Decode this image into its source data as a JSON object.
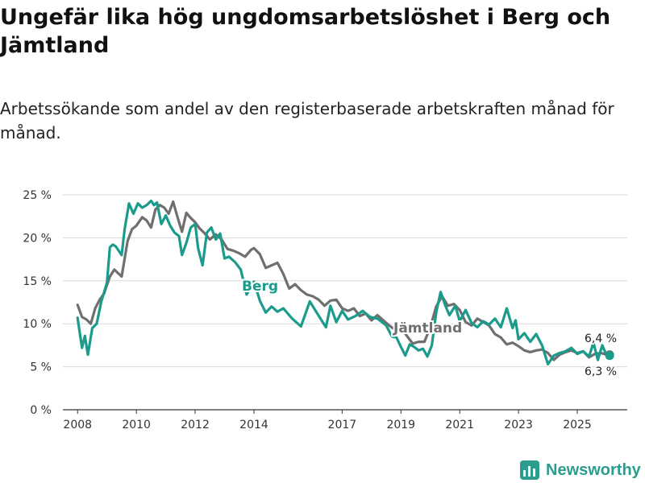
{
  "title": "Ungefär lika hög ungdomsarbetslöshet i Berg och Jämtland",
  "subtitle": "Arbetssökande som andel av den registerbaserade arbetskraften månad för månad.",
  "brand": "Newsworthy",
  "colors": {
    "berg": "#1a9b8c",
    "jamtland": "#6f6f6f",
    "grid": "#d8d8d8",
    "axis": "#333333"
  },
  "chart_data": {
    "type": "line",
    "title": "Ungefär lika hög ungdomsarbetslöshet i Berg och Jämtland",
    "xlabel": "",
    "ylabel": "",
    "x_range": [
      2007.5,
      2026.7
    ],
    "ylim": [
      0,
      25
    ],
    "x_ticks": [
      {
        "value": 2008,
        "label": "2008"
      },
      {
        "value": 2010,
        "label": "2010"
      },
      {
        "value": 2012,
        "label": "2012"
      },
      {
        "value": 2014,
        "label": "2014"
      },
      {
        "value": 2017,
        "label": "2017"
      },
      {
        "value": 2019,
        "label": "2019"
      },
      {
        "value": 2021,
        "label": "2021"
      },
      {
        "value": 2023,
        "label": "2023"
      },
      {
        "value": 2025,
        "label": "2025"
      }
    ],
    "y_ticks": [
      {
        "value": 0,
        "label": "0 %"
      },
      {
        "value": 5,
        "label": "5 %"
      },
      {
        "value": 10,
        "label": "10 %"
      },
      {
        "value": 15,
        "label": "15 %"
      },
      {
        "value": 20,
        "label": "20 %"
      },
      {
        "value": 25,
        "label": "25 %"
      }
    ],
    "series": [
      {
        "name": "Berg",
        "x": [
          2008.0,
          2008.15,
          2008.25,
          2008.35,
          2008.5,
          2008.65,
          2008.8,
          2009.0,
          2009.1,
          2009.2,
          2009.3,
          2009.5,
          2009.6,
          2009.75,
          2009.9,
          2010.05,
          2010.2,
          2010.35,
          2010.5,
          2010.6,
          2010.7,
          2010.85,
          2011.0,
          2011.15,
          2011.3,
          2011.45,
          2011.55,
          2011.7,
          2011.85,
          2012.0,
          2012.1,
          2012.25,
          2012.4,
          2012.55,
          2012.7,
          2012.85,
          2013.0,
          2013.15,
          2013.35,
          2013.55,
          2013.75,
          2014.0,
          2014.2,
          2014.4,
          2014.6,
          2014.8,
          2015.0,
          2015.3,
          2015.6,
          2015.9,
          2016.1,
          2016.3,
          2016.45,
          2016.6,
          2016.8,
          2017.0,
          2017.2,
          2017.45,
          2017.7,
          2017.95,
          2018.2,
          2018.5,
          2018.7,
          2018.85,
          2019.0,
          2019.15,
          2019.3,
          2019.45,
          2019.6,
          2019.75,
          2019.9,
          2020.05,
          2020.2,
          2020.35,
          2020.5,
          2020.65,
          2020.85,
          2021.0,
          2021.2,
          2021.4,
          2021.6,
          2021.8,
          2022.0,
          2022.2,
          2022.4,
          2022.6,
          2022.8,
          2022.9,
          2023.0,
          2023.2,
          2023.4,
          2023.6,
          2023.8,
          2024.0,
          2024.2,
          2024.4,
          2024.6,
          2024.8,
          2025.0,
          2025.2,
          2025.4,
          2025.55,
          2025.7,
          2025.85,
          2026.0,
          2026.1
        ],
        "values": [
          10.7,
          7.2,
          8.6,
          6.4,
          9.5,
          10.0,
          12.5,
          14.8,
          18.9,
          19.2,
          19.0,
          18.0,
          21.0,
          24.0,
          22.8,
          24.0,
          23.5,
          23.8,
          24.3,
          23.8,
          24.1,
          21.6,
          22.6,
          21.4,
          20.6,
          20.2,
          18.0,
          19.4,
          21.2,
          21.6,
          18.8,
          16.8,
          20.6,
          21.2,
          19.8,
          20.5,
          17.6,
          17.8,
          17.2,
          16.3,
          13.4,
          14.9,
          12.7,
          11.3,
          12.0,
          11.4,
          11.8,
          10.6,
          9.7,
          12.6,
          11.5,
          10.4,
          9.6,
          12.1,
          10.2,
          11.5,
          10.5,
          10.9,
          11.5,
          10.8,
          10.6,
          9.8,
          8.5,
          8.4,
          7.3,
          6.3,
          7.6,
          7.3,
          6.9,
          7.1,
          6.2,
          7.5,
          11.3,
          13.7,
          12.2,
          11.0,
          12.1,
          10.3,
          11.6,
          10.1,
          9.6,
          10.3,
          9.9,
          10.6,
          9.6,
          11.8,
          9.5,
          10.4,
          8.2,
          8.9,
          7.9,
          8.8,
          7.5,
          5.3,
          6.3,
          6.6,
          6.8,
          7.2,
          6.5,
          6.8,
          6.2,
          7.8,
          5.8,
          7.5,
          6.3,
          6.3
        ]
      },
      {
        "name": "Jämtland",
        "x": [
          2008.0,
          2008.15,
          2008.3,
          2008.45,
          2008.6,
          2008.75,
          2008.9,
          2009.1,
          2009.25,
          2009.5,
          2009.7,
          2009.85,
          2010.0,
          2010.2,
          2010.35,
          2010.5,
          2010.65,
          2010.8,
          2010.95,
          2011.1,
          2011.25,
          2011.4,
          2011.55,
          2011.7,
          2011.85,
          2012.0,
          2012.15,
          2012.3,
          2012.5,
          2012.7,
          2012.9,
          2013.1,
          2013.3,
          2013.5,
          2013.7,
          2013.9,
          2014.0,
          2014.2,
          2014.4,
          2014.6,
          2014.8,
          2015.0,
          2015.2,
          2015.4,
          2015.6,
          2015.8,
          2016.0,
          2016.2,
          2016.4,
          2016.6,
          2016.8,
          2017.0,
          2017.2,
          2017.4,
          2017.6,
          2017.8,
          2018.0,
          2018.2,
          2018.4,
          2018.6,
          2018.8,
          2019.0,
          2019.2,
          2019.4,
          2019.6,
          2019.8,
          2020.0,
          2020.2,
          2020.4,
          2020.6,
          2020.8,
          2021.0,
          2021.2,
          2021.4,
          2021.6,
          2021.8,
          2022.0,
          2022.2,
          2022.4,
          2022.6,
          2022.8,
          2023.0,
          2023.2,
          2023.4,
          2023.6,
          2023.8,
          2024.0,
          2024.2,
          2024.4,
          2024.6,
          2024.8,
          2025.0,
          2025.2,
          2025.4,
          2025.6,
          2025.8,
          2026.0,
          2026.1
        ],
        "values": [
          12.2,
          10.8,
          10.5,
          10.0,
          11.8,
          12.8,
          13.5,
          15.5,
          16.3,
          15.5,
          19.6,
          21.0,
          21.4,
          22.4,
          22.0,
          21.2,
          23.3,
          23.8,
          23.5,
          22.8,
          24.2,
          22.4,
          20.7,
          22.9,
          22.3,
          21.8,
          21.1,
          20.6,
          19.8,
          20.4,
          19.8,
          18.7,
          18.5,
          18.2,
          17.8,
          18.6,
          18.8,
          18.1,
          16.5,
          16.8,
          17.1,
          15.8,
          14.1,
          14.6,
          13.9,
          13.4,
          13.2,
          12.8,
          12.1,
          12.7,
          12.8,
          11.8,
          11.5,
          11.8,
          10.9,
          11.2,
          10.4,
          11.0,
          10.4,
          9.8,
          9.3,
          9.6,
          8.6,
          7.7,
          7.9,
          7.9,
          9.6,
          12.0,
          13.2,
          12.1,
          12.3,
          11.6,
          10.2,
          9.8,
          10.6,
          10.2,
          9.8,
          8.8,
          8.4,
          7.6,
          7.8,
          7.4,
          6.9,
          6.7,
          6.9,
          7.0,
          6.6,
          5.8,
          6.4,
          6.7,
          6.9,
          6.6,
          6.8,
          6.1,
          6.5,
          6.6,
          6.4,
          6.4
        ]
      }
    ],
    "annotations": [
      {
        "text": "Berg",
        "series": "Berg"
      },
      {
        "text": "Jämtland",
        "series": "Jämtland"
      },
      {
        "text": "6,4 %",
        "series": "Jämtland",
        "value": 6.4
      },
      {
        "text": "6,3 %",
        "series": "Berg",
        "value": 6.3
      }
    ]
  }
}
